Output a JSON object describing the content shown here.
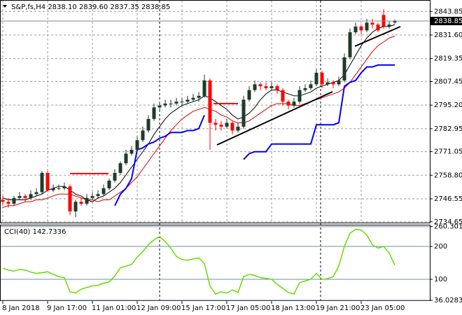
{
  "chart_data": [
    {
      "type": "candlestick",
      "title": "S&P,fs,H4  2838.10 2839.60 2837.35 2838.85",
      "categories": [
        "8 Jan 2018",
        null,
        null,
        null,
        null,
        null,
        null,
        null,
        "9 Jan 17:00",
        null,
        null,
        null,
        null,
        null,
        null,
        null,
        "11 Jan 01:00",
        null,
        null,
        null,
        null,
        null,
        null,
        null,
        "12 Jan 09:00",
        null,
        null,
        null,
        null,
        null,
        null,
        null,
        "15 Jan 17:00",
        null,
        null,
        null,
        null,
        null,
        null,
        null,
        "17 Jan 05:00",
        null,
        null,
        null,
        null,
        null,
        null,
        null,
        "18 Jan 13:00",
        null,
        null,
        null,
        null,
        null,
        null,
        null,
        "19 Jan 21:00",
        null,
        null,
        null,
        null,
        null,
        null,
        null,
        "23 Jan 05:00",
        null,
        null,
        null,
        null,
        null,
        null
      ],
      "candles": [
        [
          2746,
          2748,
          2743,
          2745
        ],
        [
          2745,
          2747,
          2742,
          2744
        ],
        [
          2744,
          2748,
          2743,
          2747
        ],
        [
          2747,
          2750,
          2746,
          2748
        ],
        [
          2748,
          2749,
          2745,
          2747
        ],
        [
          2747,
          2751,
          2746,
          2749
        ],
        [
          2749,
          2752,
          2748,
          2750
        ],
        [
          2750,
          2761,
          2749,
          2760
        ],
        [
          2760,
          2761,
          2750,
          2751
        ],
        [
          2751,
          2754,
          2750,
          2752
        ],
        [
          2752,
          2754,
          2751,
          2752
        ],
        [
          2752,
          2755,
          2751,
          2753
        ],
        [
          2753,
          2754,
          2738,
          2740
        ],
        [
          2740,
          2746,
          2737,
          2745
        ],
        [
          2745,
          2747,
          2743,
          2744
        ],
        [
          2744,
          2749,
          2743,
          2747
        ],
        [
          2747,
          2750,
          2746,
          2748
        ],
        [
          2748,
          2751,
          2747,
          2749
        ],
        [
          2749,
          2754,
          2748,
          2752
        ],
        [
          2752,
          2757,
          2751,
          2756
        ],
        [
          2756,
          2762,
          2755,
          2760
        ],
        [
          2760,
          2766,
          2759,
          2765
        ],
        [
          2765,
          2772,
          2764,
          2770
        ],
        [
          2770,
          2774,
          2769,
          2772
        ],
        [
          2772,
          2779,
          2771,
          2777
        ],
        [
          2777,
          2784,
          2776,
          2782
        ],
        [
          2782,
          2790,
          2781,
          2788
        ],
        [
          2788,
          2796,
          2787,
          2794
        ],
        [
          2794,
          2797,
          2792,
          2795
        ],
        [
          2795,
          2798,
          2794,
          2796
        ],
        [
          2796,
          2798,
          2794,
          2796
        ],
        [
          2796,
          2799,
          2795,
          2797
        ],
        [
          2797,
          2799,
          2795,
          2797
        ],
        [
          2797,
          2800,
          2796,
          2798
        ],
        [
          2798,
          2801,
          2797,
          2799
        ],
        [
          2799,
          2802,
          2797,
          2800
        ],
        [
          2800,
          2811,
          2799,
          2808
        ],
        [
          2808,
          2809,
          2772,
          2786
        ],
        [
          2786,
          2788,
          2782,
          2785
        ],
        [
          2785,
          2787,
          2782,
          2784
        ],
        [
          2784,
          2788,
          2783,
          2786
        ],
        [
          2786,
          2787,
          2780,
          2782
        ],
        [
          2782,
          2786,
          2781,
          2784
        ],
        [
          2784,
          2800,
          2783,
          2798
        ],
        [
          2798,
          2805,
          2797,
          2803
        ],
        [
          2803,
          2808,
          2802,
          2806
        ],
        [
          2806,
          2807,
          2803,
          2805
        ],
        [
          2805,
          2807,
          2803,
          2804
        ],
        [
          2804,
          2807,
          2803,
          2805
        ],
        [
          2805,
          2806,
          2801,
          2803
        ],
        [
          2803,
          2804,
          2795,
          2797
        ],
        [
          2797,
          2798,
          2793,
          2795
        ],
        [
          2795,
          2799,
          2794,
          2797
        ],
        [
          2797,
          2805,
          2796,
          2803
        ],
        [
          2803,
          2806,
          2802,
          2804
        ],
        [
          2804,
          2808,
          2803,
          2806
        ],
        [
          2806,
          2814,
          2805,
          2812
        ],
        [
          2812,
          2813,
          2804,
          2806
        ],
        [
          2806,
          2809,
          2805,
          2807
        ],
        [
          2807,
          2808,
          2804,
          2806
        ],
        [
          2806,
          2810,
          2805,
          2808
        ],
        [
          2808,
          2822,
          2807,
          2820
        ],
        [
          2820,
          2835,
          2819,
          2833
        ],
        [
          2833,
          2838,
          2832,
          2836
        ],
        [
          2836,
          2837,
          2832,
          2834
        ],
        [
          2834,
          2840,
          2833,
          2838
        ],
        [
          2838,
          2840,
          2835,
          2837
        ],
        [
          2837,
          2838,
          2833,
          2834
        ],
        [
          2842,
          2845,
          2835,
          2836
        ],
        [
          2836,
          2839,
          2835,
          2837
        ],
        [
          2838.1,
          2839.6,
          2837.35,
          2838.85
        ]
      ],
      "up_color": "#1e3b2c",
      "down_color": "#ff0000",
      "series": [
        {
          "color": "#000000",
          "values": [
            2747,
            2746,
            2746,
            2746,
            2746,
            2747,
            2748,
            2749,
            2751,
            2752,
            2753,
            2753,
            2751,
            2749,
            2748,
            2746,
            2745,
            2747,
            2748,
            2750,
            2752,
            2755,
            2759,
            2763,
            2767,
            2771,
            2775,
            2780,
            2784,
            2788,
            2791,
            2793,
            2795,
            2796,
            2797,
            2798,
            2800,
            2799,
            2797,
            2795,
            2793,
            2790,
            2788,
            2789,
            2791,
            2794,
            2798,
            2801,
            2803,
            2803,
            2802,
            2801,
            2800,
            2800,
            2801,
            2802,
            2804,
            2805,
            2806,
            2807,
            2808,
            2811,
            2816,
            2821,
            2826,
            2830,
            2833,
            2835,
            2836,
            2836,
            2837
          ]
        },
        {
          "color": "#e00000",
          "values": [
            2742,
            2743,
            2743,
            2744,
            2745,
            2745,
            2746,
            2746,
            2747,
            2748,
            2749,
            2749,
            2749,
            2748,
            2747,
            2746,
            2746,
            2745,
            2746,
            2746,
            2748,
            2750,
            2752,
            2755,
            2758,
            2762,
            2766,
            2770,
            2774,
            2778,
            2782,
            2785,
            2788,
            2790,
            2792,
            2793,
            2794,
            2793,
            2792,
            2790,
            2789,
            2787,
            2786,
            2786,
            2787,
            2789,
            2791,
            2793,
            2795,
            2796,
            2796,
            2796,
            2795,
            2795,
            2796,
            2797,
            2798,
            2799,
            2800,
            2801,
            2802,
            2804,
            2807,
            2811,
            2815,
            2819,
            2823,
            2826,
            2828,
            2830,
            2831
          ]
        },
        {
          "color": "#0000ff",
          "values": [
            null,
            null,
            null,
            null,
            null,
            null,
            null,
            null,
            null,
            null,
            null,
            null,
            null,
            null,
            null,
            null,
            null,
            null,
            null,
            null,
            2743,
            2749,
            2752,
            2757,
            2772,
            2773,
            2775,
            2776,
            2778,
            2779,
            2781,
            2781,
            2781,
            2782,
            2782,
            2783,
            2790,
            null,
            null,
            null,
            null,
            null,
            null,
            2767,
            2770,
            2771,
            2771,
            2771,
            2775,
            2775,
            2775,
            2775,
            2775,
            2775,
            2775,
            2775,
            2785,
            2785,
            2785,
            2785,
            2786,
            2805,
            2807,
            2808,
            2812,
            2815,
            2815,
            2816,
            2816,
            2816,
            2816
          ]
        }
      ],
      "ylim": [
        2734.2,
        2849.4
      ],
      "yticks": [
        2843.85,
        {
          "value": 2831.6,
          "label": "2831.60"
        },
        2819.35,
        2807.45,
        {
          "value": 2795.2,
          "label": "2795.20"
        },
        2782.95,
        2771.05,
        {
          "value": 2758.8,
          "label": "2758.80"
        },
        2746.55,
        2734.65
      ],
      "last_price": 2838.85,
      "grid": true
    },
    {
      "type": "line",
      "title": "CCI(40) 142.7336",
      "series": [
        {
          "color": "#66dd00",
          "values": [
            134,
            128,
            125,
            130,
            128,
            122,
            118,
            120,
            123,
            115,
            108,
            105,
            62,
            58,
            70,
            75,
            80,
            82,
            88,
            92,
            110,
            135,
            140,
            145,
            168,
            185,
            205,
            220,
            230,
            215,
            195,
            170,
            160,
            158,
            162,
            165,
            148,
            80,
            55,
            62,
            58,
            68,
            60,
            108,
            115,
            112,
            105,
            103,
            100,
            85,
            72,
            60,
            55,
            90,
            95,
            100,
            118,
            100,
            102,
            108,
            140,
            200,
            240,
            252,
            250,
            235,
            205,
            195,
            200,
            180,
            142.7336
          ]
        }
      ],
      "ylim": [
        34,
        264
      ],
      "yticks": [
        260.301,
        200,
        100,
        36.0283
      ],
      "grid": true
    }
  ]
}
